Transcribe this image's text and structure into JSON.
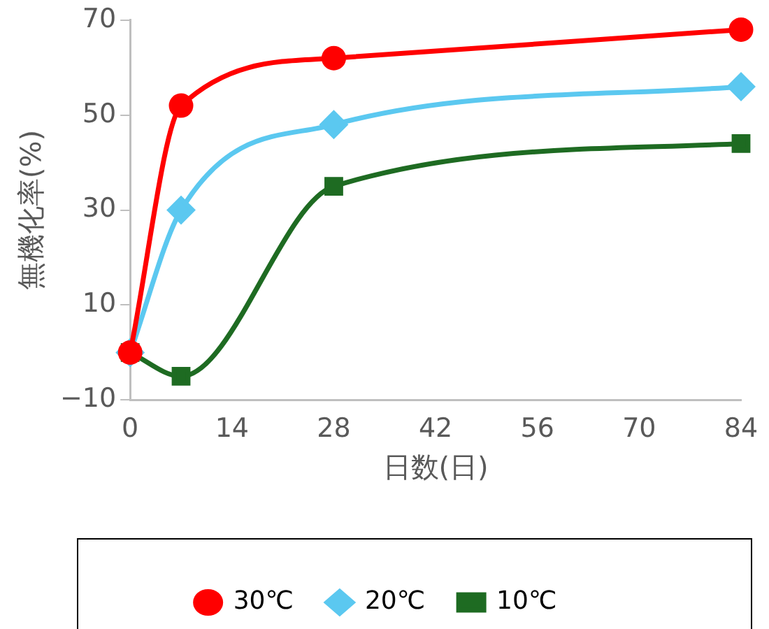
{
  "chart_data": {
    "type": "line",
    "xlabel": "日数(日)",
    "ylabel": "無機化率(%)",
    "x": [
      0,
      7,
      28,
      84
    ],
    "series": [
      {
        "name": "30℃",
        "color": "#ff0000",
        "marker": "circle",
        "values": [
          0,
          52,
          62,
          68
        ]
      },
      {
        "name": "20℃",
        "color": "#5bc8f0",
        "marker": "diamond",
        "values": [
          0,
          30,
          48,
          56
        ]
      },
      {
        "name": "10℃",
        "color": "#1e6b22",
        "marker": "square",
        "values": [
          0,
          -5,
          35,
          44
        ]
      }
    ],
    "xlim": [
      0,
      84
    ],
    "xticks": [
      0,
      14,
      28,
      42,
      56,
      70,
      84
    ],
    "ylim": [
      -10,
      70
    ],
    "yticks": [
      {
        "value": -10,
        "label": "−10"
      },
      10,
      30,
      50,
      70
    ],
    "grid": false,
    "legend": "bottom"
  }
}
